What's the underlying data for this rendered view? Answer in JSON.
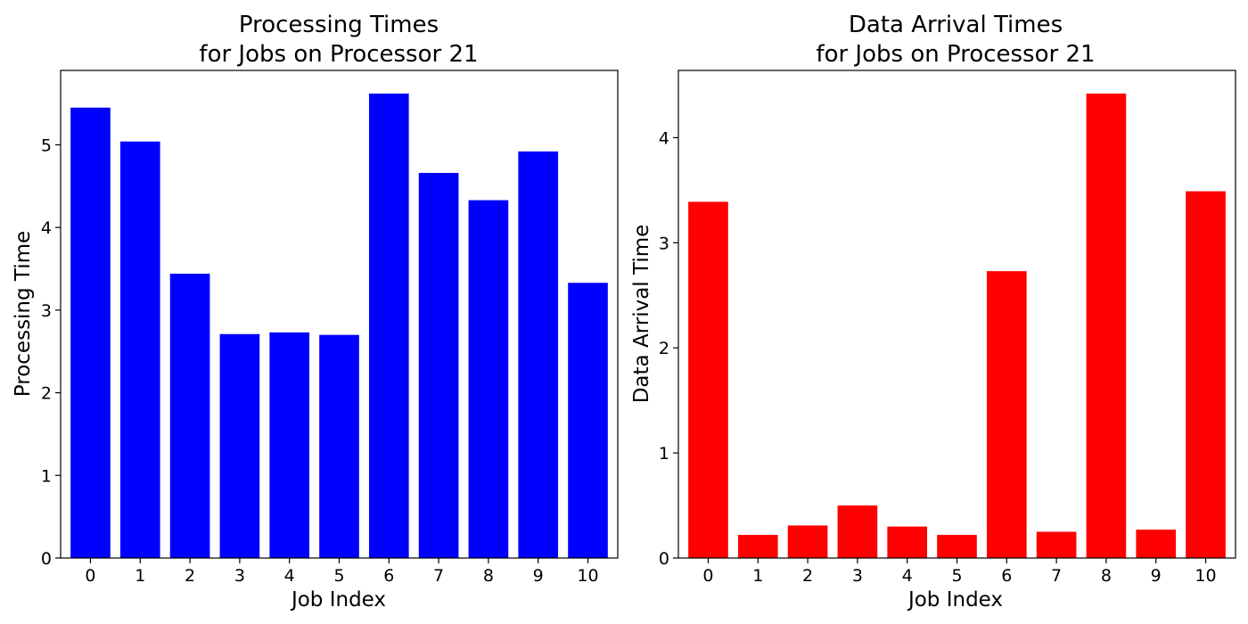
{
  "chart_data": [
    {
      "type": "bar",
      "title_line1": "Processing Times",
      "title_line2": "for Jobs on Processor 21",
      "xlabel": "Job Index",
      "ylabel": "Processing Time",
      "categories": [
        "0",
        "1",
        "2",
        "3",
        "4",
        "5",
        "6",
        "7",
        "8",
        "9",
        "10"
      ],
      "values": [
        5.45,
        5.04,
        3.44,
        2.71,
        2.73,
        2.7,
        5.62,
        4.66,
        4.33,
        4.92,
        3.33
      ],
      "ylim": [
        0,
        5.9
      ],
      "yticks": [
        0,
        1,
        2,
        3,
        4,
        5
      ],
      "color": "#0000ff",
      "grid": false
    },
    {
      "type": "bar",
      "title_line1": "Data Arrival Times",
      "title_line2": "for Jobs on Processor 21",
      "xlabel": "Job Index",
      "ylabel": "Data Arrival Time",
      "categories": [
        "0",
        "1",
        "2",
        "3",
        "4",
        "5",
        "6",
        "7",
        "8",
        "9",
        "10"
      ],
      "values": [
        3.39,
        0.22,
        0.31,
        0.5,
        0.3,
        0.22,
        2.73,
        0.25,
        4.42,
        0.27,
        3.49
      ],
      "ylim": [
        0,
        4.64
      ],
      "yticks": [
        0,
        1,
        2,
        3,
        4
      ],
      "color": "#ff0000",
      "grid": false
    }
  ]
}
